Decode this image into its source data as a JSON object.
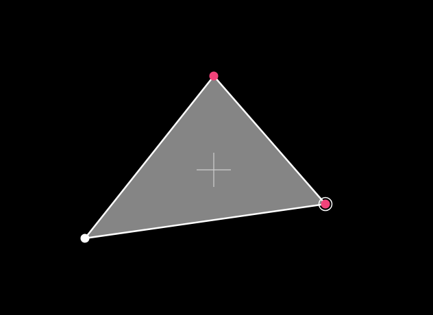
{
  "colors": {
    "background": "#000000",
    "triangle_fill": "#858585",
    "triangle_stroke": "#ffffff",
    "crosshair": "#cfcfcf",
    "handle_active": "#f0437a",
    "handle_default": "#ffffff",
    "selection_ring": "#ffffff"
  },
  "icons": {
    "center_marker": "crosshair-icon",
    "vertex_handle": "circle-handle-icon"
  },
  "vertices": [
    {
      "id": "top",
      "state": "active"
    },
    {
      "id": "right",
      "state": "selected"
    },
    {
      "id": "left",
      "state": "default"
    }
  ]
}
